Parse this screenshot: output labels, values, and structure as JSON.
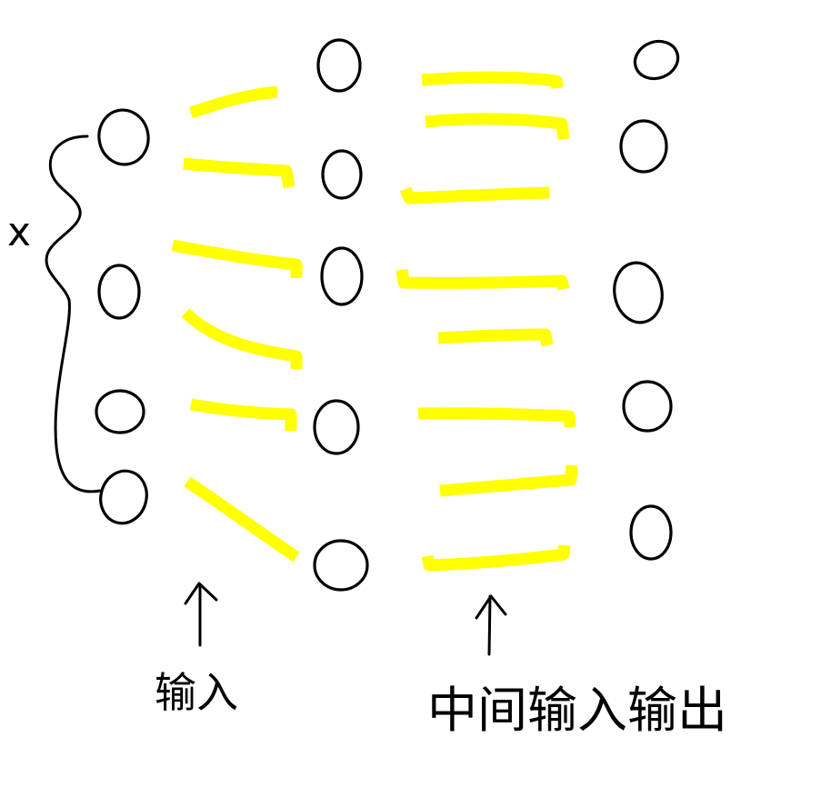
{
  "diagram": {
    "input_variable_label": "x",
    "input_caption": "输入",
    "intermediate_caption": "中间输入输出",
    "colors": {
      "ink": "#000000",
      "highlight": "#ffff00",
      "background": "#ffffff"
    }
  }
}
